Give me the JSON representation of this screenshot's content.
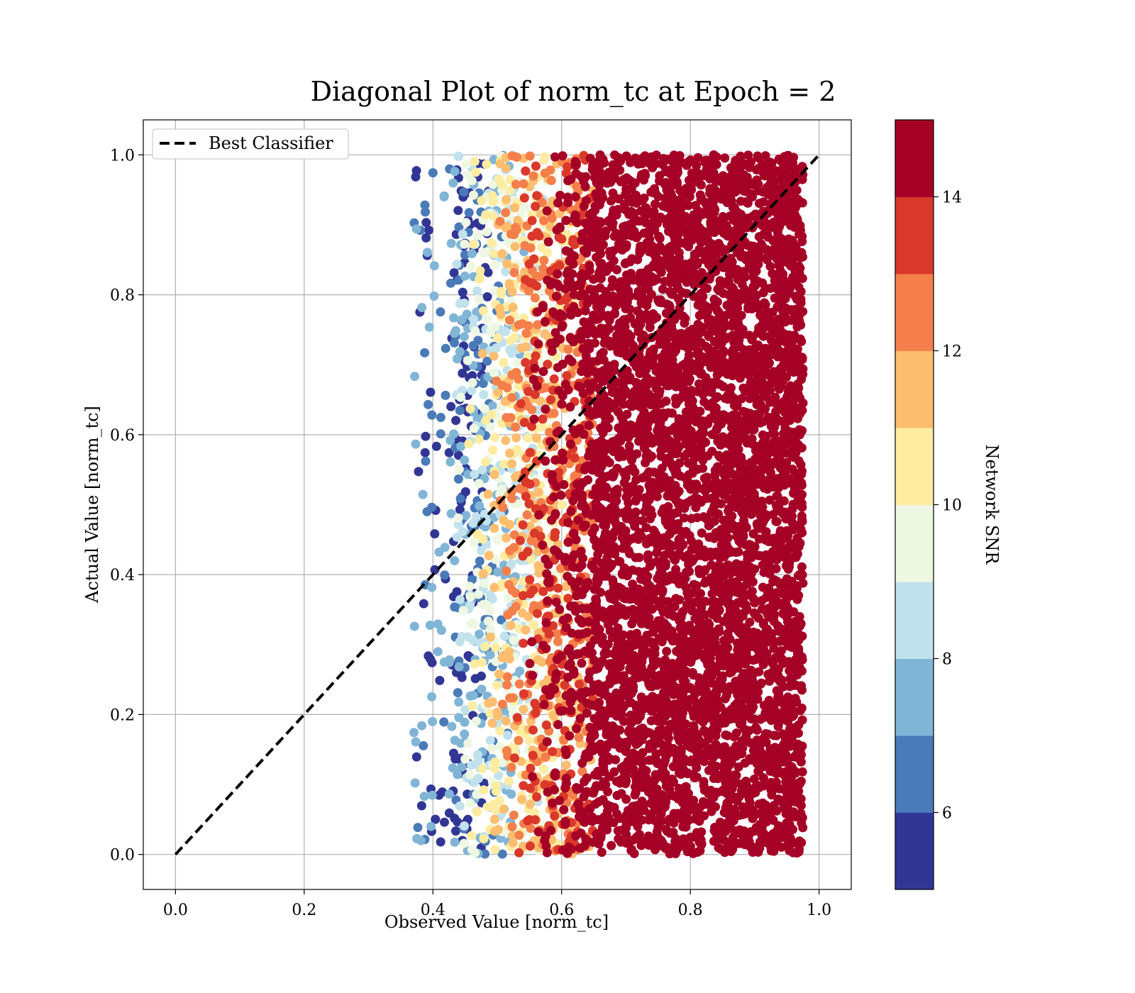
{
  "chart_data": {
    "type": "scatter",
    "title": "Diagonal Plot of norm_tc at Epoch = 2",
    "xlabel": "Observed Value [norm_tc]",
    "ylabel": "Actual Value [norm_tc]",
    "xlim": [
      -0.05,
      1.05
    ],
    "ylim": [
      -0.05,
      1.05
    ],
    "xticks": [
      "0.0",
      "0.2",
      "0.4",
      "0.6",
      "0.8",
      "1.0"
    ],
    "yticks": [
      "0.0",
      "0.2",
      "0.4",
      "0.6",
      "0.8",
      "1.0"
    ],
    "grid": true,
    "legend": {
      "placement": "top-left",
      "entries": [
        "Best Classifier"
      ]
    },
    "reference_line": {
      "name": "Best Classifier",
      "x": [
        0,
        1
      ],
      "y": [
        0,
        1
      ],
      "style": "dashed",
      "color": "#000000"
    },
    "scatter_description": {
      "x_range": [
        0.37,
        1.0
      ],
      "y_range": [
        0.0,
        1.0
      ],
      "trend": "higher observed value corresponds to higher Network SNR"
    },
    "colorbar": {
      "label": "Network SNR",
      "range": [
        5,
        15
      ],
      "ticks": [
        "6",
        "8",
        "10",
        "12",
        "14"
      ],
      "bins": [
        {
          "from": 5,
          "to": 6,
          "color": "#313695"
        },
        {
          "from": 6,
          "to": 7,
          "color": "#4a7ab7"
        },
        {
          "from": 7,
          "to": 8,
          "color": "#81b5d6"
        },
        {
          "from": 8,
          "to": 9,
          "color": "#c1e2ec"
        },
        {
          "from": 9,
          "to": 10,
          "color": "#eef7e2"
        },
        {
          "from": 10,
          "to": 11,
          "color": "#feeca1"
        },
        {
          "from": 11,
          "to": 12,
          "color": "#fdbe70"
        },
        {
          "from": 12,
          "to": 13,
          "color": "#f57f4b"
        },
        {
          "from": 13,
          "to": 14,
          "color": "#da382a"
        },
        {
          "from": 14,
          "to": 15,
          "color": "#a50026"
        }
      ]
    }
  }
}
